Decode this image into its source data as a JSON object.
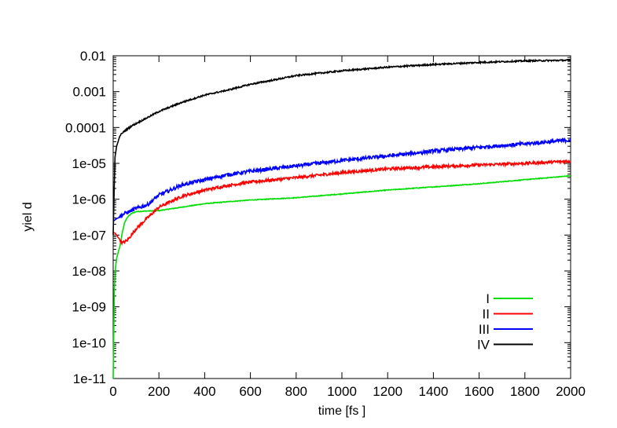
{
  "chart_data": {
    "type": "line",
    "title": "",
    "xlabel": "time [fs ]",
    "ylabel": "yiel d",
    "xlim": [
      0,
      2000
    ],
    "ylim": [
      1e-11,
      0.01
    ],
    "yscale": "log",
    "grid": false,
    "legend_position": "bottom-right",
    "x_ticks": [
      0,
      200,
      400,
      600,
      800,
      1000,
      1200,
      1400,
      1600,
      1800,
      2000
    ],
    "x_tick_labels": [
      "0",
      "200",
      "400",
      "600",
      "800",
      "1000",
      "1200",
      "1400",
      "1600",
      "1800",
      "2000"
    ],
    "y_ticks": [
      1e-11,
      1e-10,
      1e-09,
      1e-08,
      1e-07,
      1e-06,
      1e-05,
      0.0001,
      0.001,
      0.01
    ],
    "y_tick_labels": [
      "1e-11",
      "1e-10",
      "1e-09",
      "1e-08",
      "1e-07",
      "1e-06",
      "1e-05",
      "0.0001",
      "0.001",
      "0.01"
    ],
    "series": [
      {
        "name": "I",
        "color": "#00dd00",
        "noise": 0.02,
        "points": [
          [
            0,
            1e-11
          ],
          [
            5,
            3e-09
          ],
          [
            10,
            1.2e-08
          ],
          [
            15,
            2.2e-08
          ],
          [
            20,
            3e-08
          ],
          [
            30,
            5e-08
          ],
          [
            40,
            1.2e-07
          ],
          [
            50,
            2.2e-07
          ],
          [
            60,
            3e-07
          ],
          [
            70,
            3.5e-07
          ],
          [
            80,
            4e-07
          ],
          [
            100,
            4.5e-07
          ],
          [
            150,
            4.7e-07
          ],
          [
            200,
            4.8e-07
          ],
          [
            300,
            6e-07
          ],
          [
            400,
            7.5e-07
          ],
          [
            500,
            8.5e-07
          ],
          [
            600,
            9.5e-07
          ],
          [
            800,
            1.1e-06
          ],
          [
            1000,
            1.4e-06
          ],
          [
            1200,
            1.8e-06
          ],
          [
            1400,
            2.2e-06
          ],
          [
            1600,
            2.7e-06
          ],
          [
            1800,
            3.5e-06
          ],
          [
            2000,
            4.5e-06
          ]
        ]
      },
      {
        "name": "II",
        "color": "#ff0000",
        "noise": 0.08,
        "points": [
          [
            0,
            1.2e-07
          ],
          [
            10,
            1.1e-07
          ],
          [
            20,
            9e-08
          ],
          [
            40,
            6e-08
          ],
          [
            60,
            7e-08
          ],
          [
            80,
            1e-07
          ],
          [
            100,
            1.5e-07
          ],
          [
            150,
            3e-07
          ],
          [
            200,
            6e-07
          ],
          [
            300,
            1.2e-06
          ],
          [
            400,
            1.8e-06
          ],
          [
            500,
            2.4e-06
          ],
          [
            600,
            3e-06
          ],
          [
            800,
            4e-06
          ],
          [
            1000,
            5.5e-06
          ],
          [
            1200,
            7e-06
          ],
          [
            1400,
            8e-06
          ],
          [
            1600,
            9e-06
          ],
          [
            1800,
            1e-05
          ],
          [
            2000,
            1.15e-05
          ]
        ]
      },
      {
        "name": "III",
        "color": "#0000ff",
        "noise": 0.1,
        "points": [
          [
            0,
            2.5e-07
          ],
          [
            20,
            3e-07
          ],
          [
            50,
            4e-07
          ],
          [
            100,
            5.5e-07
          ],
          [
            150,
            7e-07
          ],
          [
            200,
            1.3e-06
          ],
          [
            300,
            2.5e-06
          ],
          [
            400,
            3.5e-06
          ],
          [
            500,
            4.8e-06
          ],
          [
            600,
            6e-06
          ],
          [
            800,
            8.5e-06
          ],
          [
            1000,
            1.2e-05
          ],
          [
            1200,
            1.6e-05
          ],
          [
            1400,
            2.2e-05
          ],
          [
            1600,
            2.8e-05
          ],
          [
            1800,
            3.5e-05
          ],
          [
            2000,
            4.5e-05
          ]
        ]
      },
      {
        "name": "IV",
        "color": "#000000",
        "noise": 0.04,
        "points": [
          [
            0,
            1e-07
          ],
          [
            3,
            8e-07
          ],
          [
            8,
            1.5e-05
          ],
          [
            15,
            3e-05
          ],
          [
            30,
            6e-05
          ],
          [
            50,
            8e-05
          ],
          [
            80,
            0.00011
          ],
          [
            120,
            0.00015
          ],
          [
            200,
            0.00028
          ],
          [
            300,
            0.0005
          ],
          [
            400,
            0.0008
          ],
          [
            500,
            0.0011
          ],
          [
            600,
            0.0016
          ],
          [
            700,
            0.0021
          ],
          [
            800,
            0.0028
          ],
          [
            1000,
            0.0038
          ],
          [
            1200,
            0.0048
          ],
          [
            1400,
            0.0057
          ],
          [
            1600,
            0.0065
          ],
          [
            1800,
            0.0072
          ],
          [
            2000,
            0.0075
          ]
        ]
      }
    ]
  }
}
